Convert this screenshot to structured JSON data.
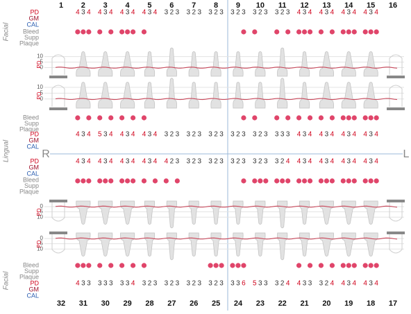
{
  "labels": {
    "facial": "Facial",
    "lingual": "Lingual",
    "right": "R",
    "left": "L",
    "pd": "PD",
    "gm": "GM",
    "cal": "CAL",
    "bleed": "Bleed",
    "supp": "Supp",
    "plaque": "Plaque"
  },
  "graph_ticks": [
    0,
    5,
    10
  ],
  "high_pd_threshold": 4,
  "colors": {
    "pd_high": "#d0021b",
    "pd_normal": "#333333",
    "bleed": "#e0456a",
    "gm": "#a0102a",
    "cal": "#2a5db0",
    "muted": "#888888"
  },
  "upper": {
    "teeth": [
      1,
      2,
      3,
      4,
      5,
      6,
      7,
      8,
      9,
      10,
      11,
      12,
      13,
      14,
      15,
      16
    ],
    "missing": [
      1,
      16
    ],
    "facial_pd": [
      null,
      [
        4,
        3,
        4
      ],
      [
        4,
        3,
        4
      ],
      [
        4,
        3,
        4
      ],
      [
        4,
        3,
        4
      ],
      [
        3,
        2,
        3
      ],
      [
        3,
        2,
        3
      ],
      [
        3,
        2,
        3
      ],
      [
        3,
        2,
        3
      ],
      [
        3,
        2,
        3
      ],
      [
        3,
        2,
        3
      ],
      [
        4,
        3,
        4
      ],
      [
        4,
        3,
        4
      ],
      [
        4,
        3,
        4
      ],
      [
        4,
        3,
        4
      ],
      null
    ],
    "facial_bleed": [
      null,
      [
        1,
        1,
        1
      ],
      [
        1,
        0,
        1
      ],
      [
        1,
        1,
        1
      ],
      [
        1,
        0,
        0
      ],
      [
        0,
        0,
        0
      ],
      [
        0,
        0,
        0
      ],
      [
        0,
        0,
        0
      ],
      [
        0,
        0,
        1
      ],
      [
        1,
        0,
        0
      ],
      [
        1,
        0,
        1
      ],
      [
        1,
        1,
        1
      ],
      [
        1,
        0,
        1
      ],
      [
        1,
        1,
        1
      ],
      [
        1,
        1,
        1
      ],
      null
    ],
    "lingual_bleed": [
      null,
      [
        1,
        0,
        1
      ],
      [
        1,
        0,
        1
      ],
      [
        1,
        0,
        1
      ],
      [
        1,
        0,
        0
      ],
      [
        0,
        0,
        0
      ],
      [
        0,
        0,
        0
      ],
      [
        0,
        0,
        0
      ],
      [
        0,
        0,
        1
      ],
      [
        1,
        0,
        0
      ],
      [
        1,
        0,
        1
      ],
      [
        1,
        0,
        1
      ],
      [
        1,
        0,
        1
      ],
      [
        1,
        1,
        1
      ],
      [
        1,
        1,
        1
      ],
      null
    ],
    "lingual_pd": [
      null,
      [
        4,
        3,
        4
      ],
      [
        5,
        3,
        4
      ],
      [
        4,
        3,
        4
      ],
      [
        4,
        3,
        4
      ],
      [
        3,
        2,
        3
      ],
      [
        3,
        2,
        3
      ],
      [
        3,
        2,
        3
      ],
      [
        3,
        2,
        3
      ],
      [
        3,
        2,
        3
      ],
      [
        3,
        3,
        3
      ],
      [
        4,
        3,
        4
      ],
      [
        4,
        3,
        4
      ],
      [
        4,
        3,
        4
      ],
      [
        4,
        3,
        4
      ],
      null
    ]
  },
  "lower": {
    "teeth": [
      32,
      31,
      30,
      29,
      28,
      27,
      26,
      25,
      24,
      23,
      22,
      21,
      20,
      19,
      18,
      17
    ],
    "missing": [
      32,
      17
    ],
    "lingual_pd": [
      null,
      [
        4,
        3,
        4
      ],
      [
        4,
        3,
        4
      ],
      [
        4,
        3,
        4
      ],
      [
        4,
        3,
        4
      ],
      [
        4,
        2,
        3
      ],
      [
        3,
        2,
        3
      ],
      [
        3,
        2,
        3
      ],
      [
        3,
        2,
        3
      ],
      [
        3,
        2,
        3
      ],
      [
        3,
        2,
        4
      ],
      [
        4,
        3,
        4
      ],
      [
        4,
        3,
        4
      ],
      [
        4,
        3,
        4
      ],
      [
        4,
        3,
        4
      ],
      null
    ],
    "lingual_bleed": [
      null,
      [
        1,
        1,
        1
      ],
      [
        1,
        1,
        1
      ],
      [
        1,
        1,
        1
      ],
      [
        1,
        0,
        1
      ],
      [
        1,
        0,
        1
      ],
      [
        0,
        0,
        0
      ],
      [
        0,
        0,
        0
      ],
      [
        0,
        0,
        1
      ],
      [
        1,
        1,
        1
      ],
      [
        1,
        1,
        1
      ],
      [
        1,
        1,
        1
      ],
      [
        1,
        1,
        1
      ],
      [
        1,
        1,
        1
      ],
      [
        1,
        1,
        1
      ],
      null
    ],
    "facial_bleed": [
      null,
      [
        1,
        1,
        1
      ],
      [
        1,
        0,
        1
      ],
      [
        1,
        0,
        1
      ],
      [
        1,
        0,
        0
      ],
      [
        0,
        0,
        0
      ],
      [
        0,
        0,
        0
      ],
      [
        1,
        1,
        1
      ],
      [
        1,
        1,
        1
      ],
      [
        0,
        0,
        0
      ],
      [
        0,
        0,
        0
      ],
      [
        1,
        0,
        1
      ],
      [
        1,
        0,
        1
      ],
      [
        1,
        1,
        1
      ],
      [
        1,
        1,
        1
      ],
      null
    ],
    "facial_pd": [
      null,
      [
        4,
        3,
        3
      ],
      [
        3,
        3,
        3
      ],
      [
        3,
        3,
        4
      ],
      [
        3,
        2,
        3
      ],
      [
        3,
        2,
        3
      ],
      [
        3,
        2,
        3
      ],
      [
        3,
        2,
        3
      ],
      [
        3,
        3,
        6
      ],
      [
        5,
        3,
        3
      ],
      [
        3,
        2,
        4
      ],
      [
        4,
        3,
        3
      ],
      [
        3,
        2,
        4
      ],
      [
        4,
        3,
        4
      ],
      [
        4,
        3,
        4
      ],
      null
    ]
  }
}
